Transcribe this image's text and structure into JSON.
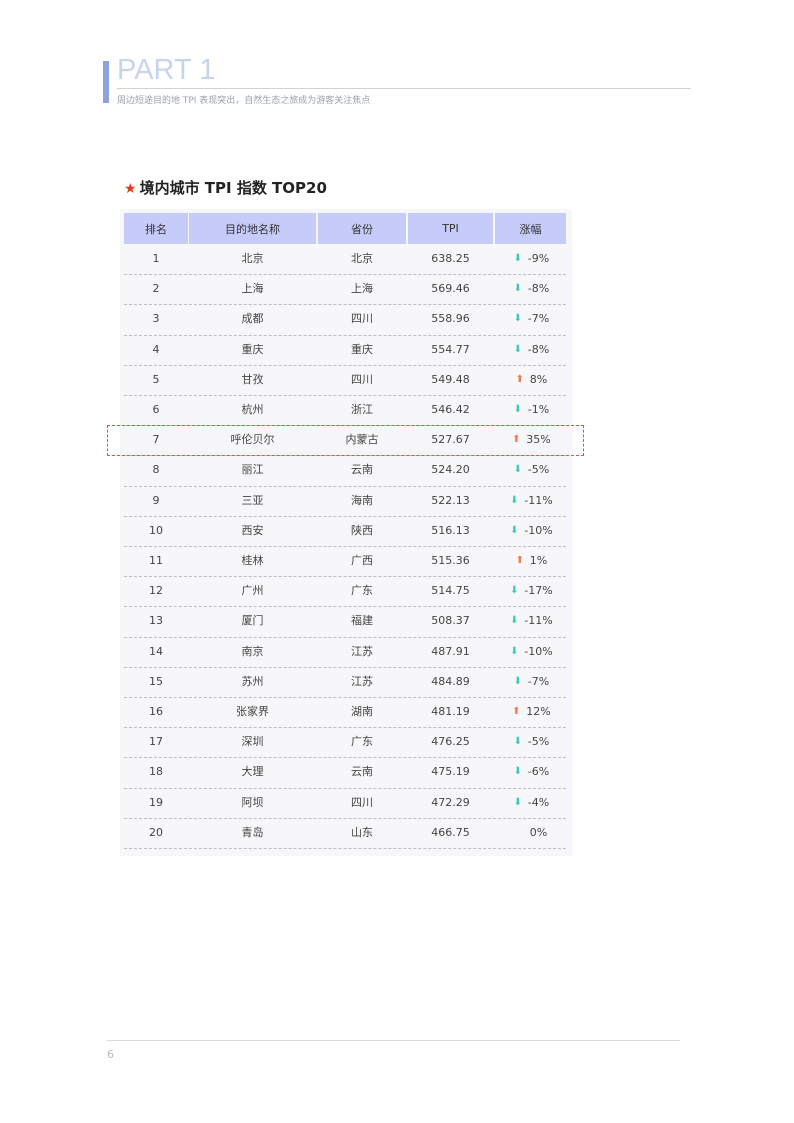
{
  "header": {
    "part": "PART 1",
    "subtitle": "周边短途目的地 TPI 表现突出，自然生态之旅成为游客关注焦点"
  },
  "section": {
    "title": "境内城市 TPI 指数 TOP20",
    "icon": "star-icon"
  },
  "colors": {
    "up": "#f07a4a",
    "down": "#3dc7b5",
    "header_bg": "#c6cbf9",
    "highlight": "#e6503c"
  },
  "table": {
    "columns": [
      "排名",
      "目的地名称",
      "省份",
      "TPI",
      "涨幅"
    ],
    "rows": [
      {
        "rank": "1",
        "city": "北京",
        "province": "北京",
        "tpi": "638.25",
        "change": "-9%",
        "dir": "down"
      },
      {
        "rank": "2",
        "city": "上海",
        "province": "上海",
        "tpi": "569.46",
        "change": "-8%",
        "dir": "down"
      },
      {
        "rank": "3",
        "city": "成都",
        "province": "四川",
        "tpi": "558.96",
        "change": "-7%",
        "dir": "down"
      },
      {
        "rank": "4",
        "city": "重庆",
        "province": "重庆",
        "tpi": "554.77",
        "change": "-8%",
        "dir": "down"
      },
      {
        "rank": "5",
        "city": "甘孜",
        "province": "四川",
        "tpi": "549.48",
        "change": "8%",
        "dir": "up"
      },
      {
        "rank": "6",
        "city": "杭州",
        "province": "浙江",
        "tpi": "546.42",
        "change": "-1%",
        "dir": "down"
      },
      {
        "rank": "7",
        "city": "呼伦贝尔",
        "province": "内蒙古",
        "tpi": "527.67",
        "change": "35%",
        "dir": "up",
        "highlighted": true
      },
      {
        "rank": "8",
        "city": "丽江",
        "province": "云南",
        "tpi": "524.20",
        "change": "-5%",
        "dir": "down"
      },
      {
        "rank": "9",
        "city": "三亚",
        "province": "海南",
        "tpi": "522.13",
        "change": "-11%",
        "dir": "down"
      },
      {
        "rank": "10",
        "city": "西安",
        "province": "陕西",
        "tpi": "516.13",
        "change": "-10%",
        "dir": "down"
      },
      {
        "rank": "11",
        "city": "桂林",
        "province": "广西",
        "tpi": "515.36",
        "change": "1%",
        "dir": "up"
      },
      {
        "rank": "12",
        "city": "广州",
        "province": "广东",
        "tpi": "514.75",
        "change": "-17%",
        "dir": "down"
      },
      {
        "rank": "13",
        "city": "厦门",
        "province": "福建",
        "tpi": "508.37",
        "change": "-11%",
        "dir": "down"
      },
      {
        "rank": "14",
        "city": "南京",
        "province": "江苏",
        "tpi": "487.91",
        "change": "-10%",
        "dir": "down"
      },
      {
        "rank": "15",
        "city": "苏州",
        "province": "江苏",
        "tpi": "484.89",
        "change": "-7%",
        "dir": "down"
      },
      {
        "rank": "16",
        "city": "张家界",
        "province": "湖南",
        "tpi": "481.19",
        "change": "12%",
        "dir": "up"
      },
      {
        "rank": "17",
        "city": "深圳",
        "province": "广东",
        "tpi": "476.25",
        "change": "-5%",
        "dir": "down"
      },
      {
        "rank": "18",
        "city": "大理",
        "province": "云南",
        "tpi": "475.19",
        "change": "-6%",
        "dir": "down"
      },
      {
        "rank": "19",
        "city": "阿坝",
        "province": "四川",
        "tpi": "472.29",
        "change": "-4%",
        "dir": "down"
      },
      {
        "rank": "20",
        "city": "青岛",
        "province": "山东",
        "tpi": "466.75",
        "change": "0%",
        "dir": "none"
      }
    ]
  },
  "footer": {
    "page": "6"
  }
}
